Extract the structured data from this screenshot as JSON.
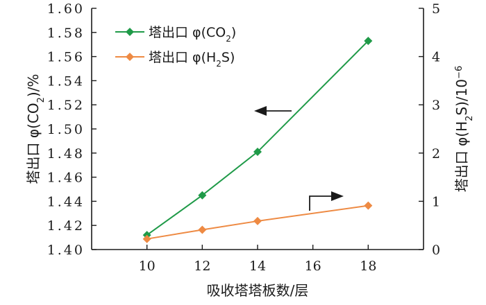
{
  "chart_data": {
    "type": "line",
    "x": [
      10,
      12,
      14,
      18
    ],
    "xlim": [
      8,
      20
    ],
    "xticks": [
      "10",
      "12",
      "14",
      "16",
      "18"
    ],
    "xlabel": "吸收塔塔板数/层",
    "y_left": {
      "label_main": "塔出口 φ(CO",
      "label_sub": "2",
      "label_tail": ")/%",
      "lim": [
        1.4,
        1.6
      ],
      "ticks": [
        "1.40",
        "1.42",
        "1.44",
        "1.46",
        "1.48",
        "1.50",
        "1.52",
        "1.54",
        "1.56",
        "1.58",
        "1.60"
      ]
    },
    "y_right": {
      "label_main": "塔出口 φ(H",
      "label_sub": "2",
      "label_mid": "S)/10",
      "label_sup": "−6",
      "lim": [
        0,
        5
      ],
      "ticks": [
        "0",
        "1",
        "2",
        "3",
        "4",
        "5"
      ]
    },
    "series": [
      {
        "name": "塔出口 φ(CO₂)",
        "legend_main": "塔出口 φ(CO",
        "legend_sub": "2",
        "legend_tail": ")",
        "axis": "left",
        "color": "#1f9a48",
        "values": [
          1.412,
          1.445,
          1.481,
          1.573
        ]
      },
      {
        "name": "塔出口 φ(H₂S)",
        "legend_main": "塔出口 φ(H",
        "legend_sub": "2",
        "legend_tail": "S)",
        "axis": "right",
        "color": "#ee8a43",
        "values": [
          0.22,
          0.41,
          0.59,
          0.91
        ]
      }
    ],
    "marker": "diamond",
    "grid": false,
    "legend_position": "top-left",
    "annotations": [
      "left-arrow near CO2 curve",
      "right-arrow near H2S curve"
    ]
  }
}
